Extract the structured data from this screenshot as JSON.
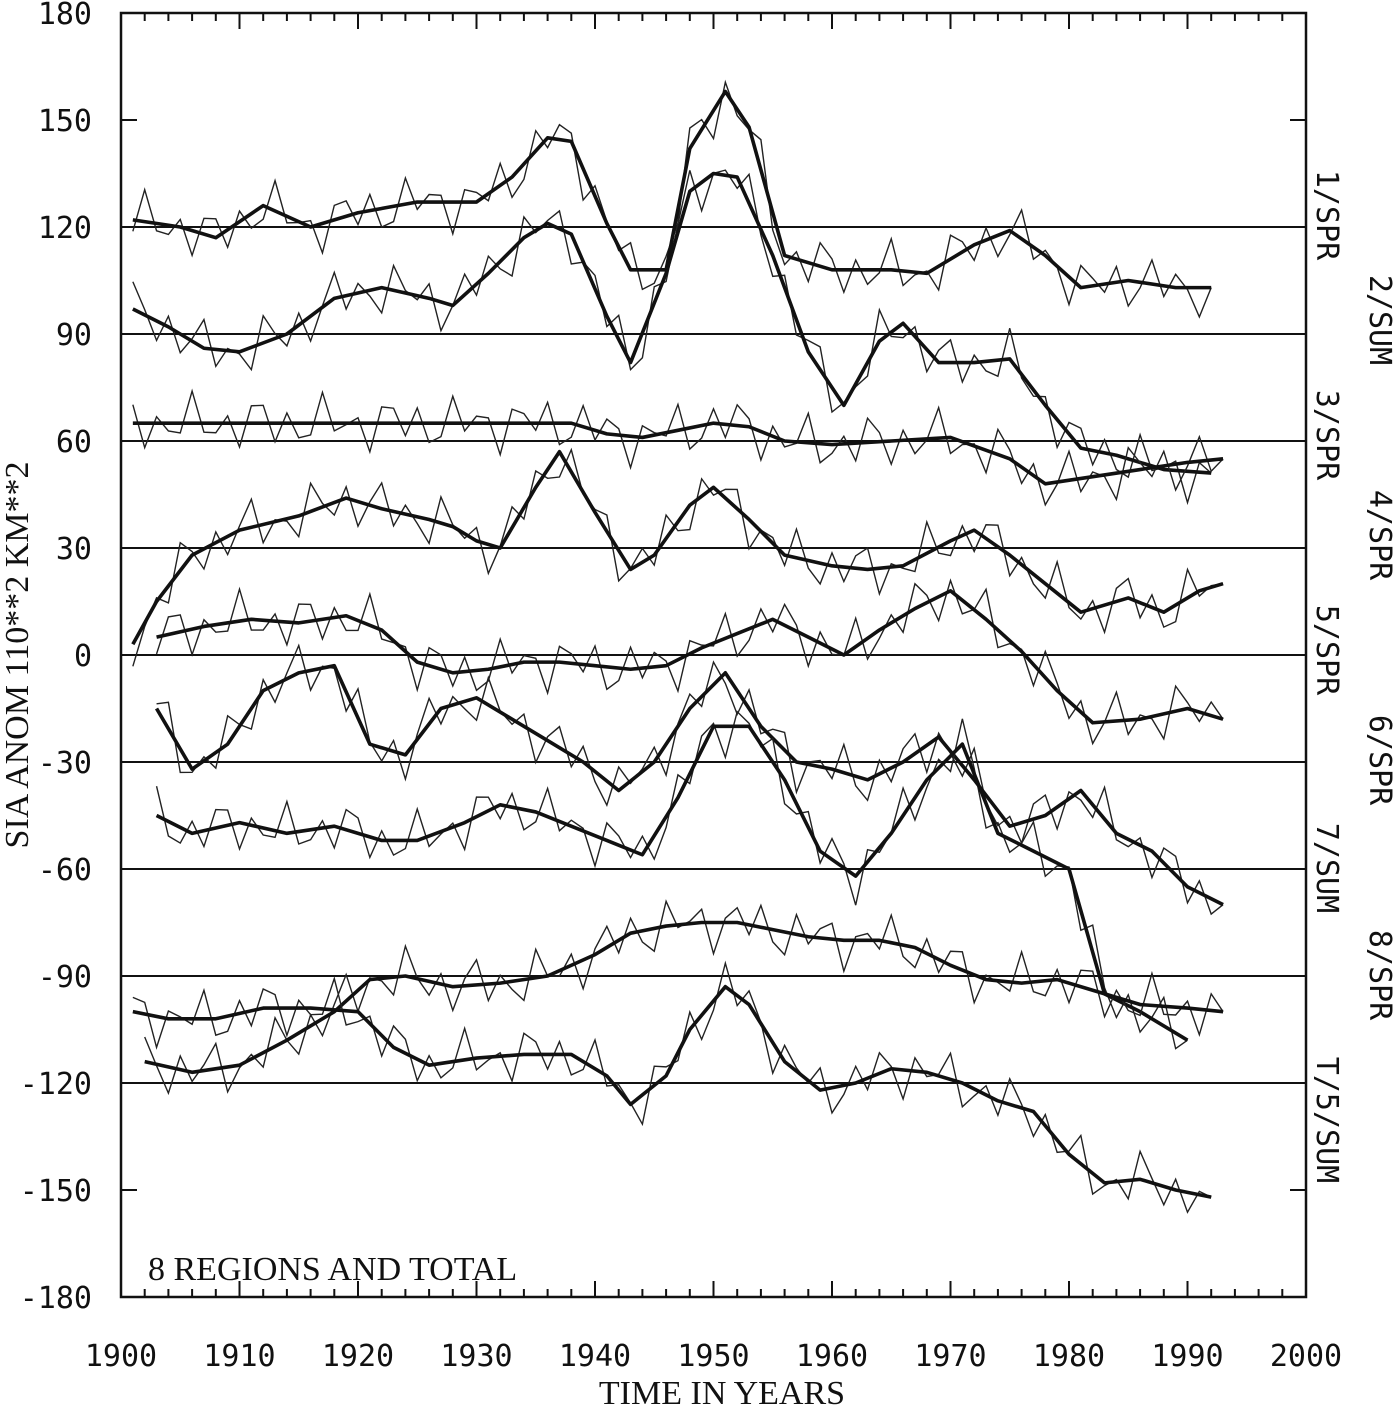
{
  "chart_data": {
    "type": "line",
    "title": "",
    "annotation": "8 REGIONS AND TOTAL",
    "xlabel": "TIME IN YEARS",
    "ylabel": "SIA ANOM 110**2 KM**2",
    "xlim": [
      1900,
      2000
    ],
    "ylim": [
      -180,
      180
    ],
    "x_ticks": [
      1900,
      1910,
      1920,
      1930,
      1940,
      1950,
      1960,
      1970,
      1980,
      1990,
      2000
    ],
    "x_tick_labels": [
      "1900",
      "1910",
      "1920",
      "1930",
      "1940",
      "1950",
      "1960",
      "1970",
      "1980",
      "1990",
      "2000"
    ],
    "y_ticks": [
      -180,
      -150,
      -120,
      -90,
      -60,
      -30,
      0,
      30,
      60,
      90,
      120,
      150,
      180
    ],
    "y_tick_labels": [
      "-180",
      "-150",
      "-120",
      "-90",
      "-60",
      "-30",
      "0",
      "30",
      "60",
      "90",
      "120",
      "150",
      "180"
    ],
    "baselines": [
      120,
      90,
      60,
      30,
      0,
      -30,
      -60,
      -90,
      -120
    ],
    "right_labels": [
      "1/SPR",
      "2/SUM",
      "3/SPR",
      "4/SPR",
      "5/SPR",
      "6/SPR",
      "7/SUM",
      "8/SPR",
      "T/5/SUM"
    ],
    "series": [
      {
        "label_index": 0,
        "x": [
          1901,
          1905,
          1908,
          1912,
          1916,
          1920,
          1925,
          1930,
          1933,
          1936,
          1938,
          1941,
          1943,
          1946,
          1948,
          1951,
          1953,
          1956,
          1960,
          1965,
          1968,
          1972,
          1975,
          1978,
          1981,
          1985,
          1989,
          1992
        ],
        "y": [
          122,
          120,
          117,
          126,
          120,
          124,
          127,
          127,
          134,
          145,
          144,
          121,
          108,
          108,
          142,
          158,
          148,
          112,
          108,
          108,
          107,
          115,
          119,
          112,
          103,
          105,
          103,
          103
        ]
      },
      {
        "label_index": 1,
        "x": [
          1901,
          1904,
          1907,
          1910,
          1914,
          1918,
          1922,
          1926,
          1928,
          1931,
          1934,
          1936,
          1938,
          1941,
          1943,
          1946,
          1948,
          1950,
          1952,
          1955,
          1958,
          1961,
          1964,
          1966,
          1969,
          1972,
          1975,
          1978,
          1981,
          1984,
          1988,
          1992
        ],
        "y": [
          97,
          92,
          86,
          85,
          90,
          100,
          103,
          100,
          98,
          107,
          117,
          121,
          118,
          95,
          82,
          107,
          130,
          135,
          134,
          112,
          85,
          70,
          88,
          93,
          82,
          82,
          83,
          70,
          58,
          56,
          52,
          51
        ]
      },
      {
        "label_index": 2,
        "x": [
          1901,
          1910,
          1920,
          1930,
          1938,
          1941,
          1944,
          1947,
          1950,
          1953,
          1956,
          1960,
          1965,
          1970,
          1975,
          1978,
          1982,
          1986,
          1990,
          1993
        ],
        "y": [
          65,
          65,
          65,
          65,
          65,
          62,
          61,
          63,
          65,
          64,
          60,
          59,
          60,
          61,
          55,
          48,
          50,
          52,
          54,
          55
        ]
      },
      {
        "label_index": 3,
        "x": [
          1901,
          1903,
          1906,
          1910,
          1915,
          1919,
          1922,
          1926,
          1928,
          1930,
          1932,
          1935,
          1937,
          1940,
          1943,
          1945,
          1948,
          1950,
          1953,
          1956,
          1960,
          1963,
          1966,
          1970,
          1972,
          1975,
          1978,
          1981,
          1985,
          1988,
          1991,
          1993
        ],
        "y": [
          3,
          15,
          28,
          35,
          39,
          44,
          41,
          38,
          36,
          32,
          30,
          47,
          57,
          40,
          24,
          28,
          42,
          47,
          38,
          28,
          25,
          24,
          25,
          32,
          35,
          28,
          20,
          12,
          16,
          12,
          18,
          20
        ]
      },
      {
        "label_index": 4,
        "x": [
          1903,
          1907,
          1911,
          1915,
          1919,
          1922,
          1925,
          1928,
          1931,
          1934,
          1937,
          1940,
          1943,
          1946,
          1949,
          1952,
          1955,
          1958,
          1961,
          1964,
          1967,
          1970,
          1973,
          1976,
          1979,
          1982,
          1986,
          1990,
          1993
        ],
        "y": [
          5,
          8,
          10,
          9,
          11,
          7,
          -2,
          -5,
          -4,
          -2,
          -2,
          -3,
          -4,
          -3,
          2,
          6,
          10,
          5,
          0,
          7,
          13,
          18,
          10,
          1,
          -10,
          -19,
          -18,
          -15,
          -18
        ]
      },
      {
        "label_index": 5,
        "x": [
          1903,
          1906,
          1909,
          1912,
          1915,
          1918,
          1921,
          1924,
          1927,
          1930,
          1933,
          1936,
          1939,
          1942,
          1945,
          1948,
          1951,
          1954,
          1957,
          1960,
          1963,
          1966,
          1969,
          1972,
          1975,
          1978,
          1981,
          1984,
          1987,
          1990,
          1993
        ],
        "y": [
          -15,
          -32,
          -25,
          -10,
          -5,
          -3,
          -25,
          -28,
          -15,
          -12,
          -18,
          -24,
          -30,
          -38,
          -30,
          -15,
          -5,
          -20,
          -30,
          -32,
          -35,
          -30,
          -23,
          -35,
          -48,
          -45,
          -38,
          -50,
          -55,
          -65,
          -70
        ]
      },
      {
        "label_index": 6,
        "x": [
          1903,
          1906,
          1910,
          1914,
          1918,
          1922,
          1925,
          1929,
          1932,
          1935,
          1938,
          1941,
          1944,
          1947,
          1950,
          1953,
          1956,
          1959,
          1962,
          1965,
          1968,
          1971,
          1974,
          1977,
          1980,
          1983,
          1986,
          1990
        ],
        "y": [
          -45,
          -50,
          -47,
          -50,
          -48,
          -52,
          -52,
          -47,
          -42,
          -44,
          -48,
          -52,
          -56,
          -40,
          -20,
          -20,
          -35,
          -55,
          -62,
          -50,
          -35,
          -25,
          -50,
          -55,
          -60,
          -95,
          -100,
          -108
        ]
      },
      {
        "label_index": 7,
        "x": [
          1902,
          1906,
          1910,
          1914,
          1918,
          1921,
          1924,
          1928,
          1932,
          1936,
          1940,
          1943,
          1946,
          1949,
          1952,
          1955,
          1958,
          1961,
          1964,
          1967,
          1970,
          1973,
          1976,
          1979,
          1982,
          1986,
          1990,
          1993
        ],
        "y": [
          -114,
          -117,
          -115,
          -108,
          -100,
          -91,
          -90,
          -93,
          -92,
          -90,
          -84,
          -78,
          -76,
          -75,
          -75,
          -77,
          -79,
          -80,
          -80,
          -82,
          -87,
          -91,
          -92,
          -91,
          -94,
          -98,
          -99,
          -100
        ]
      },
      {
        "label_index": 8,
        "x": [
          1901,
          1904,
          1908,
          1912,
          1916,
          1920,
          1923,
          1926,
          1930,
          1934,
          1938,
          1941,
          1943,
          1946,
          1948,
          1951,
          1953,
          1956,
          1959,
          1962,
          1965,
          1968,
          1971,
          1974,
          1977,
          1980,
          1983,
          1986,
          1989,
          1992
        ],
        "y": [
          -100,
          -102,
          -102,
          -99,
          -99,
          -100,
          -110,
          -115,
          -113,
          -112,
          -112,
          -118,
          -126,
          -118,
          -105,
          -93,
          -98,
          -114,
          -122,
          -120,
          -116,
          -117,
          -120,
          -125,
          -128,
          -140,
          -148,
          -147,
          -150,
          -152
        ]
      }
    ]
  }
}
